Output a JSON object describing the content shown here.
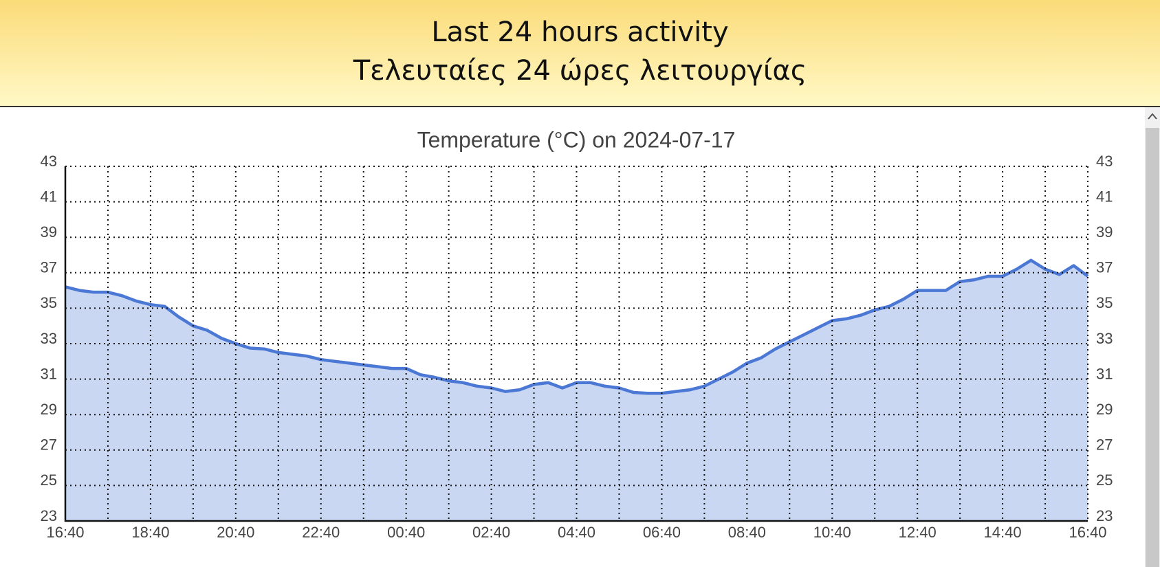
{
  "header": {
    "title_lines": [
      "Last 24 hours activity",
      "Τελευταίες 24 ώρες λειτουργίας"
    ]
  },
  "chart_data": {
    "type": "area",
    "title": "Temperature (°C) on 2024-07-17",
    "x": [
      "16:40",
      "17:00",
      "17:20",
      "17:40",
      "18:00",
      "18:20",
      "18:40",
      "19:00",
      "19:20",
      "19:40",
      "20:00",
      "20:20",
      "20:40",
      "21:00",
      "21:20",
      "21:40",
      "22:00",
      "22:20",
      "22:40",
      "23:00",
      "23:20",
      "23:40",
      "00:00",
      "00:20",
      "00:40",
      "01:00",
      "01:20",
      "01:40",
      "02:00",
      "02:20",
      "02:40",
      "03:00",
      "03:20",
      "03:40",
      "04:00",
      "04:20",
      "04:40",
      "05:00",
      "05:20",
      "05:40",
      "06:00",
      "06:20",
      "06:40",
      "07:00",
      "07:20",
      "07:40",
      "08:00",
      "08:20",
      "08:40",
      "09:00",
      "09:20",
      "09:40",
      "10:00",
      "10:20",
      "10:40",
      "11:00",
      "11:20",
      "11:40",
      "12:00",
      "12:20",
      "12:40",
      "13:00",
      "13:20",
      "13:40",
      "14:00",
      "14:20",
      "14:40",
      "15:00",
      "15:20",
      "15:40",
      "16:00",
      "16:20",
      "16:40"
    ],
    "values": [
      36.2,
      36.0,
      35.9,
      35.9,
      35.7,
      35.4,
      35.2,
      35.1,
      34.5,
      34.0,
      33.75,
      33.3,
      33.0,
      32.75,
      32.7,
      32.5,
      32.4,
      32.3,
      32.1,
      32.0,
      31.9,
      31.8,
      31.7,
      31.6,
      31.6,
      31.25,
      31.1,
      30.9,
      30.8,
      30.6,
      30.5,
      30.3,
      30.4,
      30.7,
      30.8,
      30.5,
      30.8,
      30.8,
      30.6,
      30.5,
      30.25,
      30.2,
      30.2,
      30.3,
      30.4,
      30.6,
      31.0,
      31.4,
      31.9,
      32.2,
      32.7,
      33.1,
      33.5,
      33.9,
      34.3,
      34.4,
      34.6,
      34.9,
      35.1,
      35.5,
      36.0,
      36.0,
      36.0,
      36.5,
      36.6,
      36.8,
      36.8,
      37.2,
      37.7,
      37.2,
      36.9,
      37.4,
      36.8
    ],
    "color": "#4a78d4",
    "fill_color": "#c9d7f3",
    "xticks": [
      "16:40",
      "18:40",
      "20:40",
      "22:40",
      "00:40",
      "02:40",
      "04:40",
      "06:40",
      "08:40",
      "10:40",
      "12:40",
      "14:40",
      "16:40"
    ],
    "ylim": [
      23,
      43
    ],
    "yticks": [
      23,
      25,
      27,
      29,
      31,
      33,
      35,
      37,
      39,
      41,
      43
    ],
    "grid": true
  }
}
